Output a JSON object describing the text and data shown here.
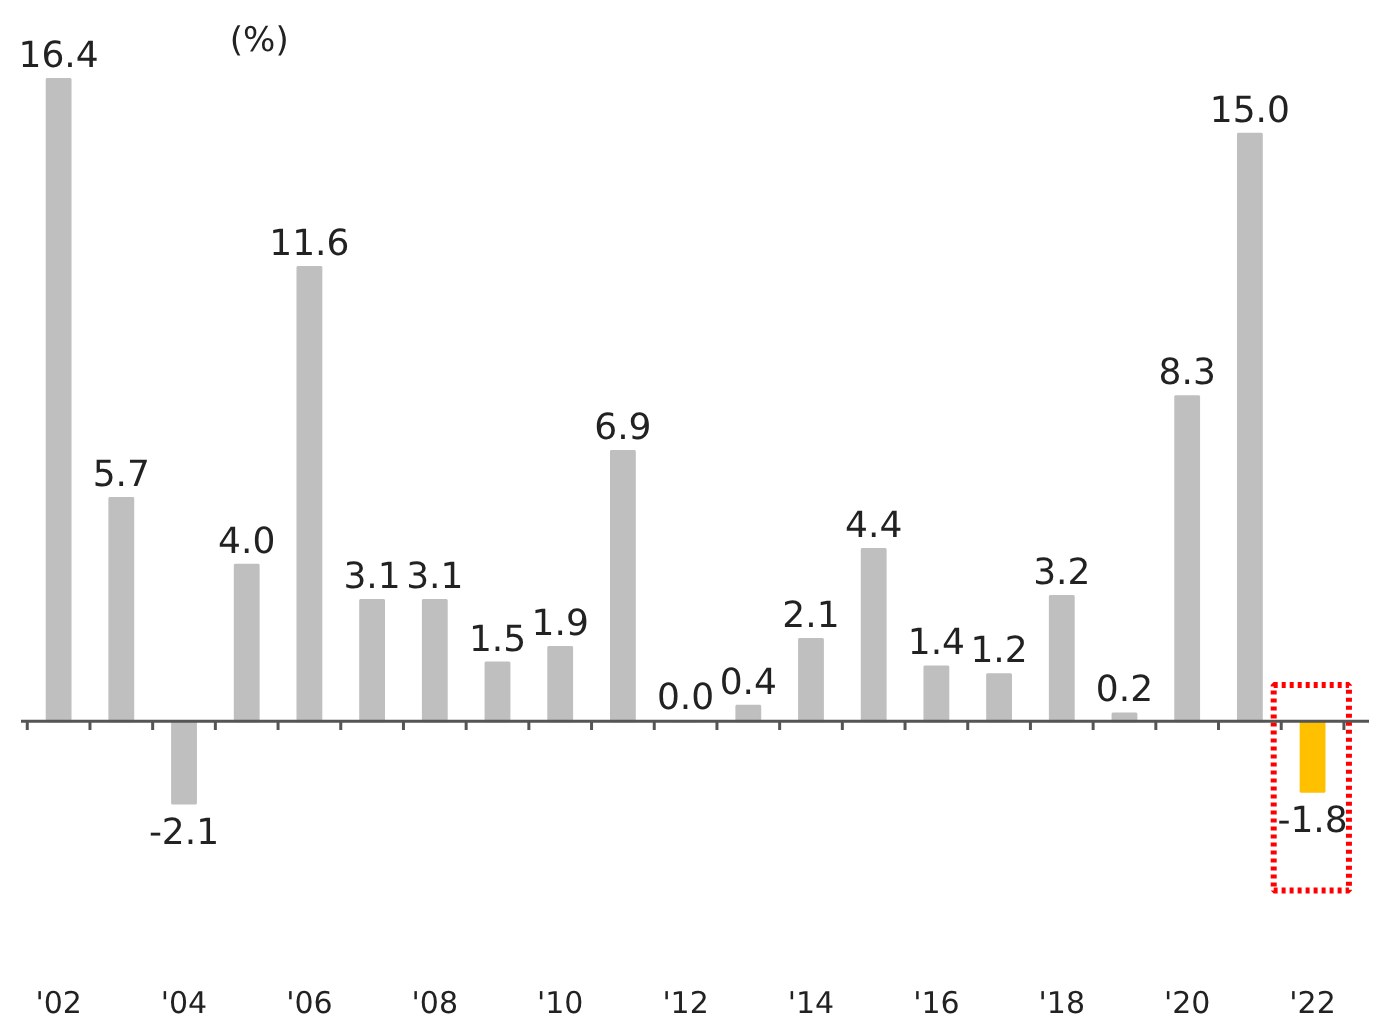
{
  "chart_data": {
    "type": "bar",
    "ylabel": "(%)",
    "categories": [
      "'02",
      null,
      "'04",
      null,
      "'06",
      null,
      "'08",
      null,
      "'10",
      null,
      "'12",
      null,
      "'14",
      null,
      "'16",
      null,
      "'18",
      null,
      "'20",
      null,
      "'22"
    ],
    "values": [
      16.4,
      5.7,
      -2.1,
      4.0,
      11.6,
      3.1,
      3.1,
      1.5,
      1.9,
      6.9,
      0.0,
      0.4,
      2.1,
      4.4,
      1.4,
      1.2,
      3.2,
      0.2,
      8.3,
      15.0,
      -1.8
    ],
    "colors": [
      "#bfbfbf",
      "#bfbfbf",
      "#bfbfbf",
      "#bfbfbf",
      "#bfbfbf",
      "#bfbfbf",
      "#bfbfbf",
      "#bfbfbf",
      "#bfbfbf",
      "#bfbfbf",
      "#bfbfbf",
      "#bfbfbf",
      "#bfbfbf",
      "#bfbfbf",
      "#bfbfbf",
      "#bfbfbf",
      "#bfbfbf",
      "#bfbfbf",
      "#bfbfbf",
      "#bfbfbf",
      "#ffc000"
    ],
    "value_labels": [
      "16.4",
      "5.7",
      "-2.1",
      "4.0",
      "11.6",
      "3.1",
      "3.1",
      "1.5",
      "1.9",
      "6.9",
      "0.0",
      "0.4",
      "2.1",
      "4.4",
      "1.4",
      "1.2",
      "3.2",
      "0.2",
      "8.3",
      "15.0",
      "-1.8"
    ],
    "grid": false
  }
}
